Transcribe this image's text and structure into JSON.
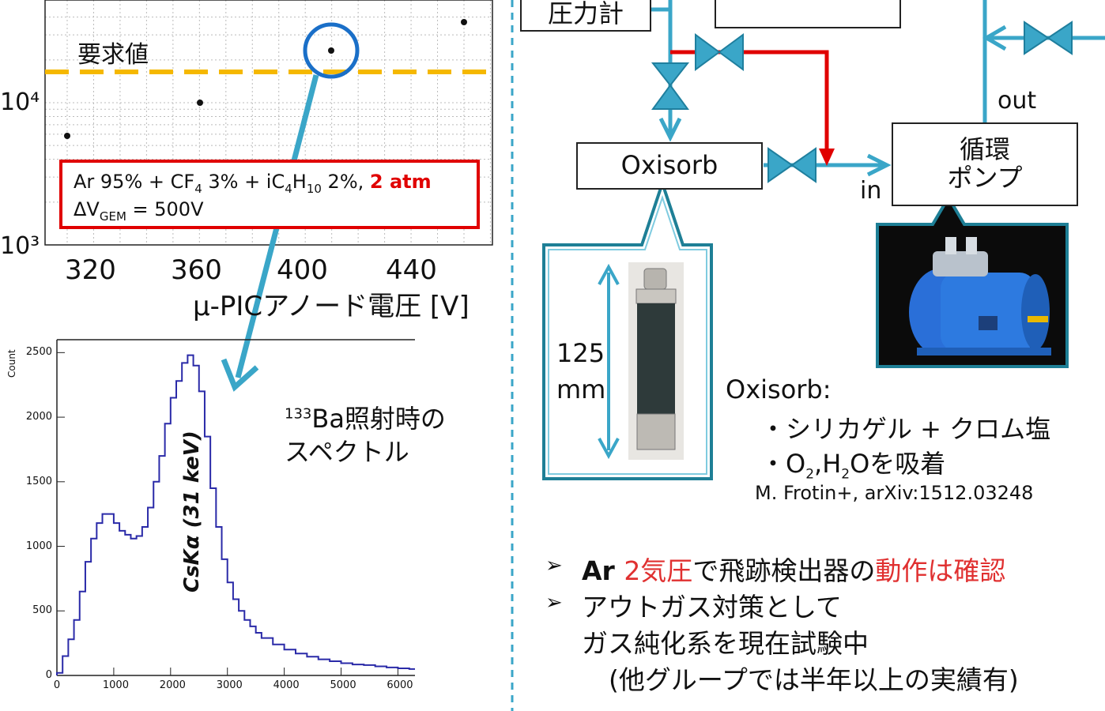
{
  "top_chart": {
    "threshold_label": "要求値",
    "x_axis_label": "μ-PICアノード電圧 [V]",
    "x_ticks": [
      "320",
      "360",
      "400",
      "440"
    ],
    "y_ticks": [
      "10⁴",
      "10³"
    ],
    "condition_gas": "Ar 95% + CF",
    "condition_sub4": "4",
    "condition_mid": " 3% + iC",
    "condition_sub4b": "4",
    "condition_h": "H",
    "condition_sub10": "10",
    "condition_pct": " 2%, ",
    "condition_pressure": "2 atm",
    "condition_dv": "ΔV",
    "condition_gem": "GEM",
    "condition_dv_value": " = 500V"
  },
  "spectrum": {
    "y_axis_label": "Count",
    "x_ticks": [
      "0",
      "1000",
      "2000",
      "3000",
      "4000",
      "5000",
      "6000"
    ],
    "y_ticks": [
      "0",
      "500",
      "1000",
      "1500",
      "2000",
      "2500"
    ],
    "peak_label": "CsKα (31 keV)",
    "caption_sup": "133",
    "caption_line1": "Ba照射時の",
    "caption_line2": "スペクトル"
  },
  "diagram": {
    "pressure_gauge": "圧力計",
    "oxisorb_box": "Oxisorb",
    "pump_box_line1": "循環",
    "pump_box_line2": "ポンプ",
    "label_in": "in",
    "label_out": "out",
    "dimension_value": "125",
    "dimension_unit": "mm"
  },
  "oxisorb_note": {
    "title": "Oxisorb:",
    "bullet1": "・シリカゲル + クロム塩",
    "bullet2_pre": "・O",
    "bullet2_sub2": "2",
    "bullet2_mid": ",H",
    "bullet2_sub2b": "2",
    "bullet2_post": "Oを吸着",
    "reference": "M. Frotin+, arXiv:1512.03248"
  },
  "bullets": {
    "b1_a": "Ar ",
    "b1_b": "2気圧",
    "b1_c": "で飛跡検出器の",
    "b1_d": "動作は確認",
    "b2_line1": "アウトガス対策として",
    "b2_line2": "ガス純化系を現在試験中",
    "b2_line3": "(他グループでは半年以上の実績有)"
  },
  "colors": {
    "pipe_blue": "#3aa6c8",
    "highlight_red": "#e00000",
    "threshold_yellow": "#f5b800",
    "spectrum_line": "#2a2aa8",
    "divider": "#3aa6c8"
  },
  "chart_data": {
    "type": "line",
    "y_axis_label": "Count",
    "xlim": [
      0,
      6300
    ],
    "ylim": [
      0,
      2600
    ],
    "x": [
      0,
      100,
      200,
      300,
      400,
      500,
      600,
      700,
      800,
      900,
      1000,
      1100,
      1200,
      1300,
      1400,
      1500,
      1600,
      1700,
      1800,
      1900,
      2000,
      2100,
      2200,
      2300,
      2400,
      2500,
      2600,
      2700,
      2800,
      2900,
      3000,
      3100,
      3200,
      3300,
      3400,
      3500,
      3600,
      3800,
      4000,
      4200,
      4400,
      4600,
      4800,
      5000,
      5200,
      5400,
      5600,
      5800,
      6000,
      6200
    ],
    "values": [
      20,
      150,
      280,
      430,
      650,
      880,
      1060,
      1180,
      1250,
      1250,
      1180,
      1120,
      1090,
      1060,
      1080,
      1150,
      1300,
      1500,
      1700,
      1950,
      2150,
      2280,
      2420,
      2480,
      2400,
      2200,
      1850,
      1450,
      1150,
      900,
      720,
      590,
      500,
      430,
      380,
      330,
      290,
      240,
      200,
      170,
      145,
      125,
      110,
      95,
      85,
      80,
      70,
      62,
      55,
      50
    ]
  }
}
